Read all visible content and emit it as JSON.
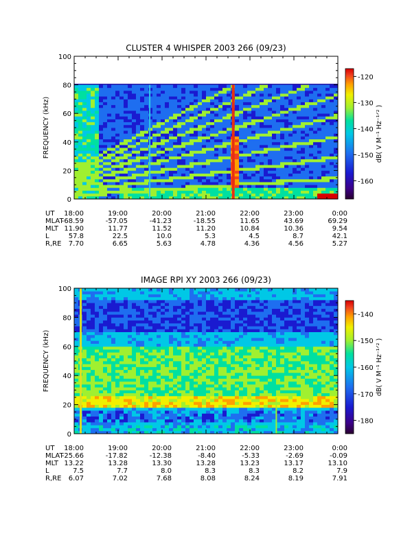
{
  "colors": {
    "scale": [
      "#2a0030",
      "#3c0088",
      "#1a1ad0",
      "#1e6ef0",
      "#00c8e6",
      "#00e0a0",
      "#a0f030",
      "#f0f000",
      "#ffa000",
      "#f04020",
      "#d80000"
    ]
  },
  "chart_data": [
    {
      "type": "heatmap",
      "title": "CLUSTER 4 WHISPER 2003 266 (09/23)",
      "ylabel": "FREQUENCY (kHz)",
      "ylim": [
        0,
        100
      ],
      "yticks": [
        "0",
        "20",
        "40",
        "60",
        "80",
        "100"
      ],
      "data_ylim": [
        0,
        80
      ],
      "xlim_hours": [
        18,
        24
      ],
      "colorbar": {
        "label": "dB( V M⁻¹ Hz⁻¹ᐟ² )",
        "range": [
          -167,
          -117
        ],
        "ticks": [
          "-120",
          "-130",
          "-140",
          "-150",
          "-160"
        ],
        "tick_values": [
          -120,
          -130,
          -140,
          -150,
          -160
        ]
      },
      "ephemeris": {
        "ut_label": "UT",
        "ut": [
          "18:00",
          "19:00",
          "20:00",
          "21:00",
          "22:00",
          "23:00",
          "0:00"
        ],
        "rows": [
          {
            "label": "MLAT",
            "values": [
              "-68.59",
              "-57.05",
              "-41.23",
              "-18.55",
              "11.65",
              "43.69",
              "69.29"
            ]
          },
          {
            "label": "MLT",
            "values": [
              "11.90",
              "11.77",
              "11.52",
              "11.20",
              "10.84",
              "10.36",
              "9.54"
            ]
          },
          {
            "label": "L",
            "values": [
              "57.8",
              "22.5",
              "10.0",
              "5.3",
              "4.5",
              "8.7",
              "42.1"
            ]
          },
          {
            "label": "R,RE",
            "values": [
              "7.70",
              "6.65",
              "5.63",
              "4.78",
              "4.36",
              "4.56",
              "5.27"
            ]
          }
        ]
      }
    },
    {
      "type": "heatmap",
      "title": "IMAGE RPI XY 2003 266 (09/23)",
      "ylabel": "FREQUENCY (kHz)",
      "ylim": [
        0,
        100
      ],
      "yticks": [
        "0",
        "20",
        "40",
        "60",
        "80",
        "100"
      ],
      "data_ylim": [
        0,
        100
      ],
      "xlim_hours": [
        18,
        24
      ],
      "colorbar": {
        "label": "dB( V M⁻¹ Hz⁻¹ᐟ² )",
        "range": [
          -185,
          -135
        ],
        "ticks": [
          "-140",
          "-150",
          "-160",
          "-170",
          "-180"
        ],
        "tick_values": [
          -140,
          -150,
          -160,
          -170,
          -180
        ]
      },
      "ephemeris": {
        "ut_label": "UT",
        "ut": [
          "18:00",
          "19:00",
          "20:00",
          "21:00",
          "22:00",
          "23:00",
          "0:00"
        ],
        "rows": [
          {
            "label": "MLAT",
            "values": [
              "-25.66",
              "-17.82",
              "-12.38",
              "-8.40",
              "-5.33",
              "-2.69",
              "-0.09"
            ]
          },
          {
            "label": "MLT",
            "values": [
              "13.22",
              "13.28",
              "13.30",
              "13.28",
              "13.23",
              "13.17",
              "13.10"
            ]
          },
          {
            "label": "L",
            "values": [
              "7.5",
              "7.7",
              "8.0",
              "8.3",
              "8.3",
              "8.2",
              "7.9"
            ]
          },
          {
            "label": "R,RE",
            "values": [
              "6.07",
              "7.02",
              "7.68",
              "8.08",
              "8.24",
              "8.19",
              "7.91"
            ]
          }
        ]
      }
    }
  ]
}
